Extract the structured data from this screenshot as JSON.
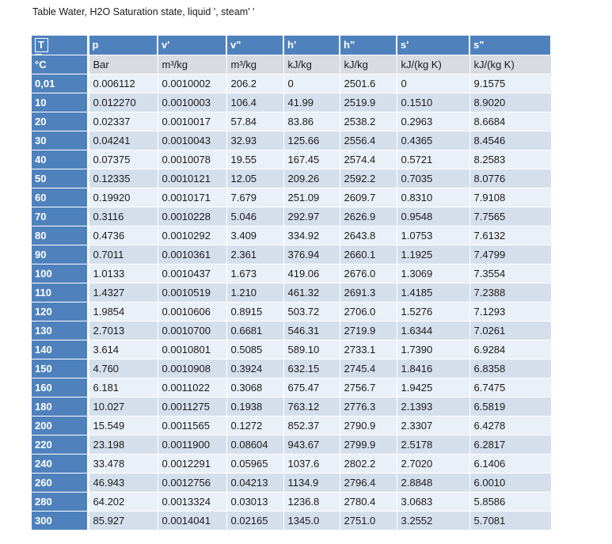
{
  "page": {
    "title": "Table Water, H2O Saturation state, liquid ', steam' '"
  },
  "colors": {
    "header_blue": "#4F81BD",
    "band_light": "#EAF0F8",
    "band_dark": "#D5DFEC",
    "unit_row_gray": "#D9DBE1"
  },
  "table": {
    "columns": [
      "T",
      "p",
      "v'",
      "v\"",
      "h'",
      "h\"",
      "s'",
      "s\""
    ],
    "units": [
      "°C",
      "Bar",
      "m³/kg",
      "m³/kg",
      "kJ/kg",
      "kJ/kg",
      "kJ/(kg K)",
      "kJ/(kg K)"
    ],
    "rows": [
      [
        "0,01",
        "0.006112",
        "0.0010002",
        "206.2",
        "0",
        "2501.6",
        "0",
        "9.1575"
      ],
      [
        "10",
        "0.012270",
        "0.0010003",
        "106.4",
        "41.99",
        "2519.9",
        "0.1510",
        "8.9020"
      ],
      [
        "20",
        "0.02337",
        "0.0010017",
        "57.84",
        "83.86",
        "2538.2",
        "0.2963",
        "8.6684"
      ],
      [
        "30",
        "0.04241",
        "0.0010043",
        "32.93",
        "125.66",
        "2556.4",
        "0.4365",
        "8.4546"
      ],
      [
        "40",
        "0.07375",
        "0.0010078",
        "19.55",
        "167.45",
        "2574.4",
        "0.5721",
        "8.2583"
      ],
      [
        "50",
        "0.12335",
        "0.0010121",
        "12.05",
        "209.26",
        "2592.2",
        "0.7035",
        "8.0776"
      ],
      [
        "60",
        "0.19920",
        "0.0010171",
        "7.679",
        "251.09",
        "2609.7",
        "0.8310",
        "7.9108"
      ],
      [
        "70",
        "0.3116",
        "0.0010228",
        "5.046",
        "292.97",
        "2626.9",
        "0.9548",
        "7.7565"
      ],
      [
        "80",
        "0.4736",
        "0.0010292",
        "3.409",
        "334.92",
        "2643.8",
        "1.0753",
        "7.6132"
      ],
      [
        "90",
        "0.7011",
        "0.0010361",
        "2.361",
        "376.94",
        "2660.1",
        "1.1925",
        "7.4799"
      ],
      [
        "100",
        "1.0133",
        "0.0010437",
        "1.673",
        "419.06",
        "2676.0",
        "1.3069",
        "7.3554"
      ],
      [
        "110",
        "1.4327",
        "0.0010519",
        "1.210",
        "461.32",
        "2691.3",
        "1.4185",
        "7.2388"
      ],
      [
        "120",
        "1.9854",
        "0.0010606",
        "0.8915",
        "503.72",
        "2706.0",
        "1.5276",
        "7.1293"
      ],
      [
        "130",
        "2.7013",
        "0.0010700",
        "0.6681",
        "546.31",
        "2719.9",
        "1.6344",
        "7.0261"
      ],
      [
        "140",
        "3.614",
        "0.0010801",
        "0.5085",
        "589.10",
        "2733.1",
        "1.7390",
        "6.9284"
      ],
      [
        "150",
        "4.760",
        "0.0010908",
        "0.3924",
        "632.15",
        "2745.4",
        "1.8416",
        "6.8358"
      ],
      [
        "160",
        "6.181",
        "0.0011022",
        "0.3068",
        "675.47",
        "2756.7",
        "1.9425",
        "6.7475"
      ],
      [
        "180",
        "10.027",
        "0.0011275",
        "0.1938",
        "763.12",
        "2776.3",
        "2.1393",
        "6.5819"
      ],
      [
        "200",
        "15.549",
        "0.0011565",
        "0.1272",
        "852.37",
        "2790.9",
        "2.3307",
        "6.4278"
      ],
      [
        "220",
        "23.198",
        "0.0011900",
        "0.08604",
        "943.67",
        "2799.9",
        "2.5178",
        "6.2817"
      ],
      [
        "240",
        "33.478",
        "0.0012291",
        "0.05965",
        "1037.6",
        "2802.2",
        "2.7020",
        "6.1406"
      ],
      [
        "260",
        "46.943",
        "0.0012756",
        "0.04213",
        "1134.9",
        "2796.4",
        "2.8848",
        "6.0010"
      ],
      [
        "280",
        "64.202",
        "0.0013324",
        "0.03013",
        "1236.8",
        "2780.4",
        "3.0683",
        "5.8586"
      ],
      [
        "300",
        "85.927",
        "0.0014041",
        "0.02165",
        "1345.0",
        "2751.0",
        "3.2552",
        "5.7081"
      ]
    ]
  }
}
